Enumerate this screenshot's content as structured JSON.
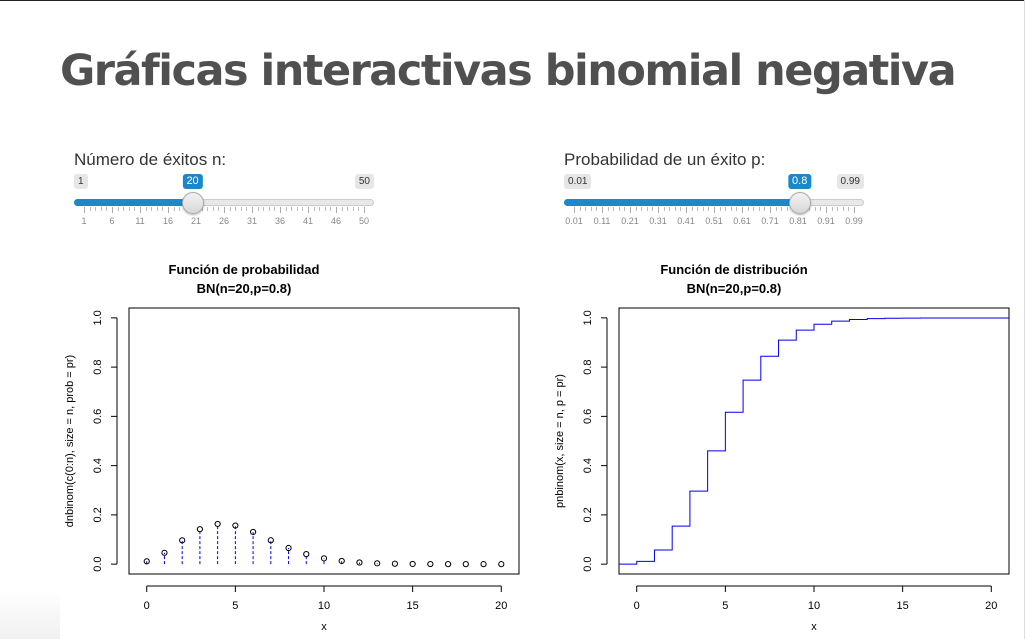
{
  "page": {
    "title": "Gráficas interactivas binomial negativa"
  },
  "sliders": [
    {
      "label": "Número de éxitos n:",
      "min": 1,
      "max": 50,
      "value": 20,
      "min_label": "1",
      "max_label": "50",
      "value_label": "20",
      "major_ticks": [
        "1",
        "6",
        "11",
        "16",
        "21",
        "26",
        "31",
        "36",
        "41",
        "46",
        "50"
      ],
      "accent": "#1c87c9"
    },
    {
      "label": "Probabilidad de un éxito p:",
      "min": 0.01,
      "max": 0.99,
      "value": 0.8,
      "min_label": "0.01",
      "max_label": "0.99",
      "value_label": "0.8",
      "major_ticks": [
        "0.01",
        "0.11",
        "0.21",
        "0.31",
        "0.41",
        "0.51",
        "0.61",
        "0.71",
        "0.81",
        "0.91",
        "0.99"
      ],
      "accent": "#1c87c9"
    }
  ],
  "chart_data": [
    {
      "type": "scatter",
      "title": "Función de probabilidad",
      "subtitle": "BN(n=20,p=0.8)",
      "xlabel": "x",
      "ylabel": "dnbinom(c(0:n), size = n, prob = pr)",
      "xlim": [
        -1,
        21
      ],
      "ylim": [
        0,
        1
      ],
      "xticks": [
        "0",
        "5",
        "10",
        "15",
        "20"
      ],
      "yticks": [
        "0.0",
        "0.2",
        "0.4",
        "0.6",
        "0.8",
        "1.0"
      ],
      "x": [
        0,
        1,
        2,
        3,
        4,
        5,
        6,
        7,
        8,
        9,
        10,
        11,
        12,
        13,
        14,
        15,
        16,
        17,
        18,
        19,
        20
      ],
      "values": [
        0.0115,
        0.0461,
        0.0968,
        0.142,
        0.1633,
        0.1567,
        0.1306,
        0.097,
        0.0655,
        0.0407,
        0.0236,
        0.0129,
        0.0067,
        0.0033,
        0.0016,
        0.0007,
        0.0003,
        0.0001,
        0.0001,
        0.0,
        0.0
      ],
      "line_color": "#0000ee"
    },
    {
      "type": "line",
      "title": "Función de distribución",
      "subtitle": "BN(n=20,p=0.8)",
      "xlabel": "x",
      "ylabel": "pnbinom(x, size = n, p = pr)",
      "xlim": [
        -1,
        21
      ],
      "ylim": [
        0,
        1
      ],
      "xticks": [
        "0",
        "5",
        "10",
        "15",
        "20"
      ],
      "yticks": [
        "0.0",
        "0.2",
        "0.4",
        "0.6",
        "0.8",
        "1.0"
      ],
      "x": [
        -1,
        0,
        1,
        2,
        3,
        4,
        5,
        6,
        7,
        8,
        9,
        10,
        11,
        12,
        13,
        14,
        15,
        16,
        17,
        18,
        19,
        20,
        21
      ],
      "values": [
        0,
        0.0115,
        0.0576,
        0.1545,
        0.2965,
        0.4598,
        0.6165,
        0.7471,
        0.8441,
        0.9096,
        0.9503,
        0.9739,
        0.9868,
        0.9935,
        0.9968,
        0.9984,
        0.9991,
        0.9994,
        0.9995,
        0.9996,
        0.9996,
        0.9996,
        0.9996
      ],
      "line_color": "#0000ee"
    }
  ]
}
